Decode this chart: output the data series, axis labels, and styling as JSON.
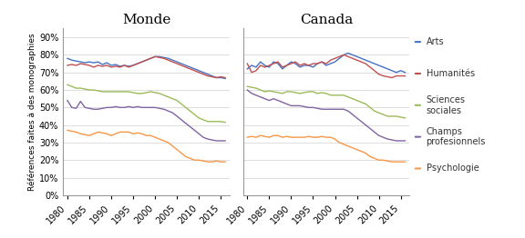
{
  "title_monde": "Monde",
  "title_canada": "Canada",
  "ylabel": "Références faites à des monographies",
  "xticks": [
    1980,
    1985,
    1990,
    1995,
    2000,
    2005,
    2010,
    2015
  ],
  "ylim": [
    0,
    0.95
  ],
  "yticks": [
    0.0,
    0.1,
    0.2,
    0.3,
    0.4,
    0.5,
    0.6,
    0.7,
    0.8,
    0.9
  ],
  "colors": {
    "Arts": "#4472C4",
    "Humanités": "#C0504D",
    "Sciences sociales": "#9BBB59",
    "Champs professionnels": "#8064A2",
    "Psychologie": "#F79646"
  },
  "legend_labels": [
    "Arts",
    "Humanités",
    "Sciences\nsociales",
    "Champs\nprofesionnels",
    "Psychologie"
  ],
  "monde": {
    "Arts": [
      78,
      77,
      76.5,
      76,
      75.5,
      76,
      75.5,
      76,
      74.5,
      75.5,
      74,
      74.5,
      73.5,
      74,
      73.5,
      74,
      75,
      76,
      77,
      78,
      79,
      79,
      78.5,
      78,
      77,
      76,
      75,
      74,
      73,
      72,
      71,
      70,
      69,
      68,
      67,
      67,
      66.5
    ],
    "Humanités": [
      74,
      74.5,
      74,
      75,
      74.5,
      74,
      73,
      74,
      73.5,
      74,
      73,
      73.5,
      73,
      74,
      73,
      74,
      75,
      76,
      77,
      78,
      79,
      78.5,
      78,
      77,
      76,
      75,
      74,
      73,
      72,
      71,
      70,
      69,
      68,
      67.5,
      67,
      67.5,
      67
    ],
    "Sciences sociales": [
      63,
      62,
      61,
      61,
      60.5,
      60,
      60,
      59.5,
      59,
      59,
      59,
      59,
      59,
      59,
      59,
      58.5,
      58,
      58,
      58.5,
      59,
      58.5,
      58,
      57,
      56,
      55,
      54,
      52,
      50,
      48,
      46,
      44,
      43,
      42,
      42,
      42,
      42,
      41.5
    ],
    "Champs professionnels": [
      54,
      50,
      49.5,
      53.5,
      50,
      49.5,
      49,
      49,
      49.5,
      50,
      50,
      50.5,
      50,
      50,
      50.5,
      50,
      50.5,
      50,
      50,
      50,
      50,
      49.5,
      49,
      48,
      47,
      45,
      43,
      41,
      39,
      37,
      35,
      33,
      32,
      31.5,
      31,
      31,
      31
    ],
    "Psychologie": [
      37,
      36.5,
      36,
      35,
      34.5,
      34,
      35,
      36,
      35.5,
      35,
      34,
      35,
      36,
      36,
      36,
      35,
      35.5,
      35,
      34,
      34,
      33,
      32,
      31,
      30,
      28,
      26,
      24,
      22,
      21,
      20,
      20,
      19.5,
      19,
      19,
      19.5,
      19,
      19
    ]
  },
  "canada": {
    "Arts": [
      72,
      74,
      73,
      76,
      74,
      73,
      76,
      75,
      72,
      74,
      76,
      75,
      73,
      74,
      74,
      73,
      75,
      76,
      74,
      75,
      76,
      78,
      80,
      81,
      80,
      79,
      78,
      77,
      76,
      75,
      74,
      73,
      72,
      71,
      70,
      71,
      70
    ],
    "Humanités": [
      75,
      70,
      71,
      74,
      73,
      74,
      75,
      76,
      73,
      74,
      75,
      76,
      74,
      75,
      74,
      75,
      75,
      76,
      75,
      77,
      78,
      79,
      80,
      79,
      78,
      77,
      76,
      75,
      73,
      71,
      69,
      68,
      67.5,
      67,
      68,
      68,
      68
    ],
    "Sciences sociales": [
      62,
      61.5,
      61,
      60,
      59,
      59.5,
      59,
      58.5,
      58,
      59,
      59,
      58.5,
      58,
      58.5,
      59,
      59,
      58,
      58.5,
      58,
      57,
      57,
      57,
      57,
      56,
      55,
      54,
      53,
      52,
      50,
      48,
      47,
      46,
      45,
      45,
      45,
      44.5,
      44
    ],
    "Champs professionnels": [
      60,
      58,
      57,
      56,
      55,
      54,
      55,
      54,
      53,
      52,
      51,
      51,
      51,
      50.5,
      50,
      50,
      49.5,
      49,
      49,
      49,
      49,
      49,
      49,
      48,
      46,
      44,
      42,
      40,
      38,
      36,
      34,
      33,
      32,
      31.5,
      31,
      31,
      31
    ],
    "Psychologie": [
      33,
      33.5,
      33,
      34,
      33.5,
      33,
      34,
      34,
      33,
      33.5,
      33,
      33,
      33,
      33,
      33.5,
      33,
      33,
      33.5,
      33,
      33,
      32,
      30,
      29,
      28,
      27,
      26,
      25,
      24,
      22,
      21,
      20,
      20,
      19.5,
      19,
      19,
      19,
      19
    ]
  },
  "start_year": 1980,
  "background_color": "#FFFFFF",
  "grid_color": "#D0D0D0"
}
